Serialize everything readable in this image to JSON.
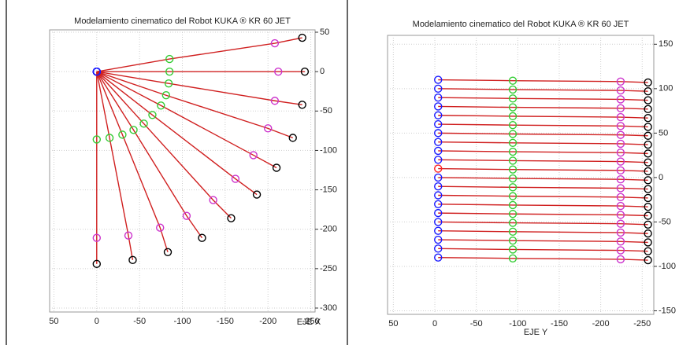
{
  "chart_data": [
    {
      "type": "line",
      "title": "Modelamiento cinematico del Robot KUKA ® KR 60 JET",
      "x_label": "EJE X",
      "xlim": [
        55,
        -255
      ],
      "ylim": [
        -305,
        53
      ],
      "xticks": [
        50,
        0,
        -50,
        -100,
        -150,
        -200,
        -250
      ],
      "yticks": [
        50,
        0,
        -50,
        -100,
        -150,
        -200,
        -250,
        -300
      ],
      "grid": true,
      "line_color": "#d02020",
      "marker_colors": [
        "#1a1aff",
        "#33cc33",
        "#cc33cc",
        "#000000"
      ],
      "series": [
        {
          "x": [
            0,
            -85,
            -208,
            -240
          ],
          "values": [
            0,
            16,
            36,
            43
          ]
        },
        {
          "x": [
            0,
            -85,
            -212,
            -243
          ],
          "values": [
            0,
            0,
            0,
            0
          ]
        },
        {
          "x": [
            0,
            -84,
            -208,
            -240
          ],
          "values": [
            0,
            -15,
            -37,
            -42
          ]
        },
        {
          "x": [
            0,
            -81,
            -200,
            -229
          ],
          "values": [
            0,
            -30,
            -72,
            -84
          ]
        },
        {
          "x": [
            0,
            -75,
            -183,
            -210
          ],
          "values": [
            0,
            -43,
            -106,
            -122
          ]
        },
        {
          "x": [
            0,
            -65,
            -162,
            -187
          ],
          "values": [
            0,
            -55,
            -136,
            -156
          ]
        },
        {
          "x": [
            0,
            -55,
            -136,
            -157
          ],
          "values": [
            0,
            -66,
            -163,
            -186
          ]
        },
        {
          "x": [
            0,
            -43,
            -105,
            -123
          ],
          "values": [
            0,
            -74,
            -183,
            -211
          ]
        },
        {
          "x": [
            0,
            -30,
            -74,
            -83
          ],
          "values": [
            0,
            -80,
            -198,
            -229
          ]
        },
        {
          "x": [
            0,
            -15,
            -37,
            -42
          ],
          "values": [
            0,
            -84,
            -208,
            -239
          ]
        },
        {
          "x": [
            0,
            0,
            0,
            0
          ],
          "values": [
            0,
            -86,
            -211,
            -244
          ]
        }
      ]
    },
    {
      "type": "line",
      "title": "Modelamiento cinematico del Robot KUKA ® KR 60 JET",
      "x_label": "EJE Y",
      "xlim": [
        57,
        -264
      ],
      "ylim": [
        -154,
        160
      ],
      "xticks": [
        50,
        0,
        -50,
        -100,
        -150,
        -200,
        -250
      ],
      "yticks": [
        150,
        100,
        50,
        0,
        -50,
        -100,
        -150
      ],
      "grid": true,
      "line_color": "#d02020",
      "marker_colors": [
        "#1a1aff",
        "#33cc33",
        "#cc33cc",
        "#000000"
      ],
      "series": [
        {
          "x": [
            -4,
            -94,
            -224,
            -257
          ],
          "values": [
            110,
            109,
            108,
            107
          ]
        },
        {
          "x": [
            -4,
            -94,
            -224,
            -257
          ],
          "values": [
            100,
            99,
            98,
            97
          ]
        },
        {
          "x": [
            -4,
            -94,
            -224,
            -257
          ],
          "values": [
            90,
            89,
            88,
            87
          ]
        },
        {
          "x": [
            -4,
            -94,
            -224,
            -257
          ],
          "values": [
            80,
            79,
            78,
            77
          ]
        },
        {
          "x": [
            -4,
            -94,
            -224,
            -257
          ],
          "values": [
            70,
            69,
            68,
            67
          ]
        },
        {
          "x": [
            -4,
            -94,
            -224,
            -257
          ],
          "values": [
            60,
            59,
            58,
            57
          ]
        },
        {
          "x": [
            -4,
            -94,
            -224,
            -257
          ],
          "values": [
            50,
            49,
            48,
            47
          ]
        },
        {
          "x": [
            -4,
            -94,
            -224,
            -257
          ],
          "values": [
            40,
            39,
            38,
            37
          ]
        },
        {
          "x": [
            -4,
            -94,
            -224,
            -257
          ],
          "values": [
            30,
            29,
            28,
            27
          ]
        },
        {
          "x": [
            -4,
            -94,
            -224,
            -257
          ],
          "values": [
            20,
            19,
            18,
            17
          ]
        },
        {
          "x": [
            -4,
            -94,
            -224,
            -257
          ],
          "values": [
            10,
            9,
            8,
            7
          ],
          "start_color": "#ff2020"
        },
        {
          "x": [
            -4,
            -94,
            -224,
            -257
          ],
          "values": [
            0,
            -1,
            -2,
            -3
          ]
        },
        {
          "x": [
            -4,
            -94,
            -224,
            -257
          ],
          "values": [
            -10,
            -11,
            -12,
            -13
          ]
        },
        {
          "x": [
            -4,
            -94,
            -224,
            -257
          ],
          "values": [
            -20,
            -21,
            -22,
            -23
          ]
        },
        {
          "x": [
            -4,
            -94,
            -224,
            -257
          ],
          "values": [
            -30,
            -31,
            -32,
            -33
          ]
        },
        {
          "x": [
            -4,
            -94,
            -224,
            -257
          ],
          "values": [
            -40,
            -41,
            -42,
            -43
          ]
        },
        {
          "x": [
            -4,
            -94,
            -224,
            -257
          ],
          "values": [
            -50,
            -51,
            -52,
            -53
          ]
        },
        {
          "x": [
            -4,
            -94,
            -224,
            -257
          ],
          "values": [
            -60,
            -61,
            -62,
            -63
          ]
        },
        {
          "x": [
            -4,
            -94,
            -224,
            -257
          ],
          "values": [
            -70,
            -71,
            -72,
            -73
          ]
        },
        {
          "x": [
            -4,
            -94,
            -224,
            -257
          ],
          "values": [
            -80,
            -81,
            -82,
            -83
          ]
        },
        {
          "x": [
            -4,
            -94,
            -224,
            -257
          ],
          "values": [
            -90,
            -91,
            -92,
            -93
          ]
        }
      ]
    }
  ]
}
